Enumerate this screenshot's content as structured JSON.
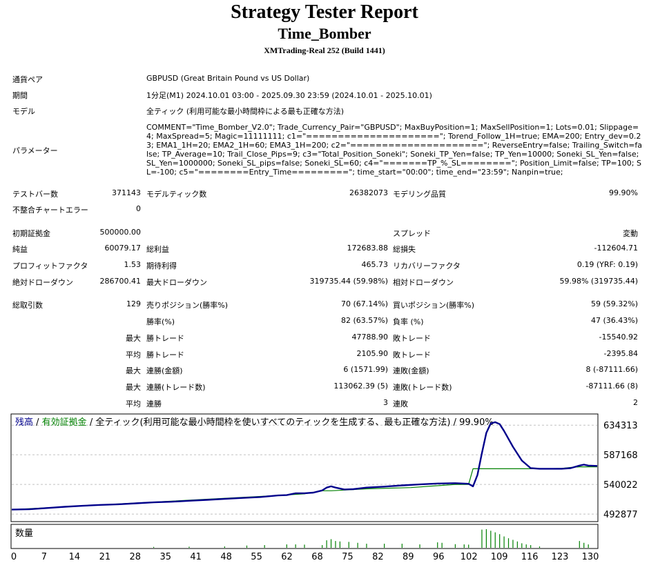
{
  "header": {
    "title": "Strategy Tester Report",
    "ea_name": "Time_Bomber",
    "server": "XMTrading-Real 252 (Build 1441)"
  },
  "info": {
    "symbol_label": "通貨ペア",
    "symbol_value": "GBPUSD (Great Britain Pound vs US Dollar)",
    "period_label": "期間",
    "period_value": "1分足(M1) 2024.10.01 03:00 - 2025.09.30 23:59 (2024.10.01 - 2025.10.01)",
    "model_label": "モデル",
    "model_value": "全ティック (利用可能な最小時間枠による最も正確な方法)",
    "params_label": "パラメーター",
    "params_value": "COMMENT=\"Time_Bomber_V2.0\"; Trade_Currency_Pair=\"GBPUSD\"; MaxBuyPosition=1; MaxSellPosition=1; Lots=0.01; Slippage=4; MaxSpread=5; Magic=11111111; c1=\"=====================\"; Torend_Follow_1H=true; EMA=200; Entry_dev=0.23; EMA1_1H=20; EMA2_1H=60; EMA3_1H=200; c2=\"=====================\"; ReverseEntry=false; Trailing_Switch=false; TP_Average=10; Trail_Close_Pips=9; c3=\"Total_Position_Soneki\"; Soneki_TP_Yen=false; TP_Yen=10000; Soneki_SL_Yen=false; SL_Yen=1000000; Soneki_SL_pips=false; Soneki_SL=60; c4=\"=======TP_%_SL========\"; Position_Limit=false; TP=100; SL=-100; c5=\"========Entry_Time=========\"; time_start=\"00:00\"; time_end=\"23:59\"; Nanpin=true;"
  },
  "bars": {
    "bars_label": "テストバー数",
    "bars_value": "371143",
    "ticks_label": "モデルティック数",
    "ticks_value": "26382073",
    "quality_label": "モデリング品質",
    "quality_value": "99.90%",
    "mismatch_label": "不整合チャートエラー",
    "mismatch_value": "0"
  },
  "stats": {
    "deposit_label": "初期証拠金",
    "deposit_value": "500000.00",
    "spread_label": "スプレッド",
    "spread_value": "変動",
    "net_label": "純益",
    "net_value": "60079.17",
    "gross_profit_label": "総利益",
    "gross_profit_value": "172683.88",
    "gross_loss_label": "総損失",
    "gross_loss_value": "-112604.71",
    "pf_label": "プロフィットファクタ",
    "pf_value": "1.53",
    "payoff_label": "期待利得",
    "payoff_value": "465.73",
    "recovery_label": "リカバリーファクタ",
    "recovery_value": "0.19 (YRF: 0.19)",
    "abs_dd_label": "絶対ドローダウン",
    "abs_dd_value": "286700.41",
    "max_dd_label": "最大ドローダウン",
    "max_dd_value": "319735.44 (59.98%)",
    "rel_dd_label": "相対ドローダウン",
    "rel_dd_value": "59.98% (319735.44)"
  },
  "trades": {
    "total_label": "総取引数",
    "total_value": "129",
    "short_label": "売りポジション(勝率%)",
    "short_value": "70 (67.14%)",
    "long_label": "買いポジション(勝率%)",
    "long_value": "59 (59.32%)",
    "winrate_label": "勝率(%)",
    "winrate_value": "82 (63.57%)",
    "lossrate_label": "負率 (%)",
    "lossrate_value": "47 (36.43%)",
    "max_label": "最大",
    "avg_label": "平均",
    "win_trade_label": "勝トレード",
    "largest_win_value": "47788.90",
    "loss_trade_label": "敗トレード",
    "largest_loss_value": "-15540.92",
    "avg_win_value": "2105.90",
    "avg_loss_value": "-2395.84",
    "consec_win_amount_label": "連勝(金額)",
    "consec_win_amount_value": "6 (1571.99)",
    "consec_loss_amount_label": "連敗(金額)",
    "consec_loss_amount_value": "8 (-87111.66)",
    "consec_win_count_label": "連勝(トレード数)",
    "consec_win_count_value": "113062.39 (5)",
    "consec_loss_count_label": "連敗(トレード数)",
    "consec_loss_count_value": "-87111.66 (8)",
    "avg_consec_win_label": "連勝",
    "avg_consec_win_value": "3",
    "avg_consec_loss_label": "連敗",
    "avg_consec_loss_value": "2"
  },
  "chart_legend": {
    "balance": "残高",
    "sep1": " / ",
    "equity": "有効証拠金",
    "rest": " / 全ティック(利用可能な最小時間枠を使いすべてのティックを生成する、最も正確な方法) / 99.90%",
    "volume_label": "数量"
  },
  "colors": {
    "balance": "#00008b",
    "equity": "#008000",
    "volume": "#008000",
    "grid": "#c0c0c0"
  },
  "chart_data": {
    "type": "line",
    "xlabel": "",
    "ylabel": "",
    "x_ticks": [
      0,
      7,
      14,
      21,
      28,
      35,
      41,
      48,
      55,
      62,
      68,
      75,
      82,
      89,
      96,
      102,
      109,
      116,
      123,
      130
    ],
    "y_ticks": [
      "634313",
      "587168",
      "540022",
      "492877"
    ],
    "ylim": [
      482000,
      651000
    ],
    "xlim": [
      0,
      132
    ],
    "series": [
      {
        "name": "残高",
        "x": [
          0,
          4,
          8,
          12,
          16,
          20,
          24,
          28,
          32,
          36,
          40,
          44,
          48,
          52,
          56,
          60,
          62,
          64,
          66,
          68,
          70,
          71,
          72,
          73,
          75,
          77,
          80,
          84,
          88,
          92,
          96,
          100,
          103,
          104,
          105,
          106,
          107,
          108,
          109,
          110,
          111,
          113,
          115,
          117,
          119,
          121,
          124,
          126,
          128,
          129,
          130,
          132
        ],
        "y": [
          500000,
          500500,
          502500,
          504500,
          506000,
          507500,
          508500,
          510000,
          511500,
          512500,
          514000,
          515500,
          517000,
          518500,
          520000,
          522500,
          523000,
          526000,
          526000,
          527000,
          530500,
          535000,
          537000,
          535000,
          532000,
          532500,
          535000,
          536500,
          538500,
          540000,
          541500,
          542000,
          541000,
          537000,
          555000,
          590000,
          622000,
          637000,
          639000,
          636000,
          625000,
          600000,
          578000,
          566000,
          565000,
          565000,
          565000,
          566000,
          570000,
          571500,
          570000,
          569500
        ]
      },
      {
        "name": "有効証拠金",
        "x": [
          0,
          60,
          66,
          70,
          72,
          75,
          80,
          90,
          100,
          102,
          103,
          104,
          105,
          110,
          120,
          124,
          126,
          128,
          129,
          132
        ],
        "y": [
          500000,
          522500,
          525000,
          530000,
          530000,
          531000,
          533000,
          535000,
          540000,
          540000,
          540000,
          565000,
          565000,
          565000,
          565000,
          565500,
          567000,
          568000,
          568000,
          568000
        ]
      }
    ],
    "volume": {
      "x": [
        32,
        40,
        48,
        53,
        57,
        62,
        64,
        66,
        70,
        71,
        72,
        73,
        74,
        76,
        78,
        80,
        84,
        88,
        92,
        96,
        97,
        100,
        102,
        103,
        106,
        107,
        108,
        109,
        110,
        111,
        112,
        113,
        114,
        115,
        116,
        117,
        119,
        128,
        129,
        130
      ],
      "h": [
        0.04,
        0.05,
        0.06,
        0.1,
        0.12,
        0.15,
        0.15,
        0.14,
        0.12,
        0.33,
        0.38,
        0.3,
        0.28,
        0.26,
        0.22,
        0.18,
        0.18,
        0.18,
        0.15,
        0.24,
        0.22,
        0.16,
        0.15,
        0.14,
        0.8,
        0.82,
        0.75,
        0.68,
        0.6,
        0.5,
        0.42,
        0.35,
        0.28,
        0.2,
        0.15,
        0.12,
        0.06,
        0.3,
        0.22,
        0.15
      ]
    }
  }
}
